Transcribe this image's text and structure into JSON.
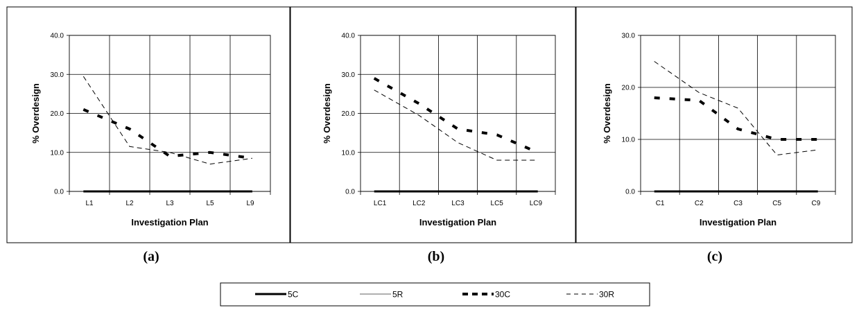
{
  "chart_data": [
    {
      "type": "line",
      "panel_label": "(a)",
      "categories": [
        "L1",
        "L2",
        "L3",
        "L5",
        "L9"
      ],
      "ylabel": "% Overdesign",
      "xlabel": "Investigation Plan",
      "ylim": [
        0,
        40
      ],
      "yticks": [
        "0.0",
        "10.0",
        "20.0",
        "30.0",
        "40.0"
      ],
      "grid": true,
      "series": [
        {
          "name": "5C",
          "values": [
            0,
            0,
            0,
            0,
            0
          ]
        },
        {
          "name": "5R",
          "values": [
            0,
            0,
            0,
            0,
            0
          ]
        },
        {
          "name": "30C",
          "values": [
            21,
            16,
            9,
            10,
            8.5
          ]
        },
        {
          "name": "30R",
          "values": [
            29.5,
            11.5,
            10,
            7,
            8.5
          ]
        }
      ]
    },
    {
      "type": "line",
      "panel_label": "(b)",
      "categories": [
        "LC1",
        "LC2",
        "LC3",
        "LC5",
        "LC9"
      ],
      "ylabel": "% Overdesign",
      "xlabel": "Investigation Plan",
      "ylim": [
        0,
        40
      ],
      "yticks": [
        "0.0",
        "10.0",
        "20.0",
        "30.0",
        "40.0"
      ],
      "grid": true,
      "series": [
        {
          "name": "5C",
          "values": [
            0,
            0,
            0,
            0,
            0
          ]
        },
        {
          "name": "5R",
          "values": [
            0,
            0,
            0,
            0,
            0
          ]
        },
        {
          "name": "30C",
          "values": [
            29,
            22.5,
            16,
            14.5,
            10
          ]
        },
        {
          "name": "30R",
          "values": [
            26,
            19.5,
            12.5,
            8,
            8
          ]
        }
      ]
    },
    {
      "type": "line",
      "panel_label": "(c)",
      "categories": [
        "C1",
        "C2",
        "C3",
        "C5",
        "C9"
      ],
      "ylabel": "% Overdesign",
      "xlabel": "Investigation Plan",
      "ylim": [
        0,
        30
      ],
      "yticks": [
        "0.0",
        "10.0",
        "20.0",
        "30.0"
      ],
      "grid": true,
      "series": [
        {
          "name": "5C",
          "values": [
            0,
            0,
            0,
            0,
            0
          ]
        },
        {
          "name": "5R",
          "values": [
            0,
            0,
            0,
            0,
            0
          ]
        },
        {
          "name": "30C",
          "values": [
            18,
            17.5,
            12,
            10,
            10
          ]
        },
        {
          "name": "30R",
          "values": [
            25,
            19,
            16,
            7,
            8
          ]
        }
      ]
    }
  ],
  "legend": {
    "placement": "bottom-center",
    "items": [
      {
        "name": "5C",
        "style": "thick-solid"
      },
      {
        "name": "5R",
        "style": "thin-solid"
      },
      {
        "name": "30C",
        "style": "thick-dash"
      },
      {
        "name": "30R",
        "style": "thin-dash"
      }
    ]
  },
  "colors": {
    "ink": "#000000",
    "grey_line": "#808080",
    "background": "#ffffff"
  }
}
